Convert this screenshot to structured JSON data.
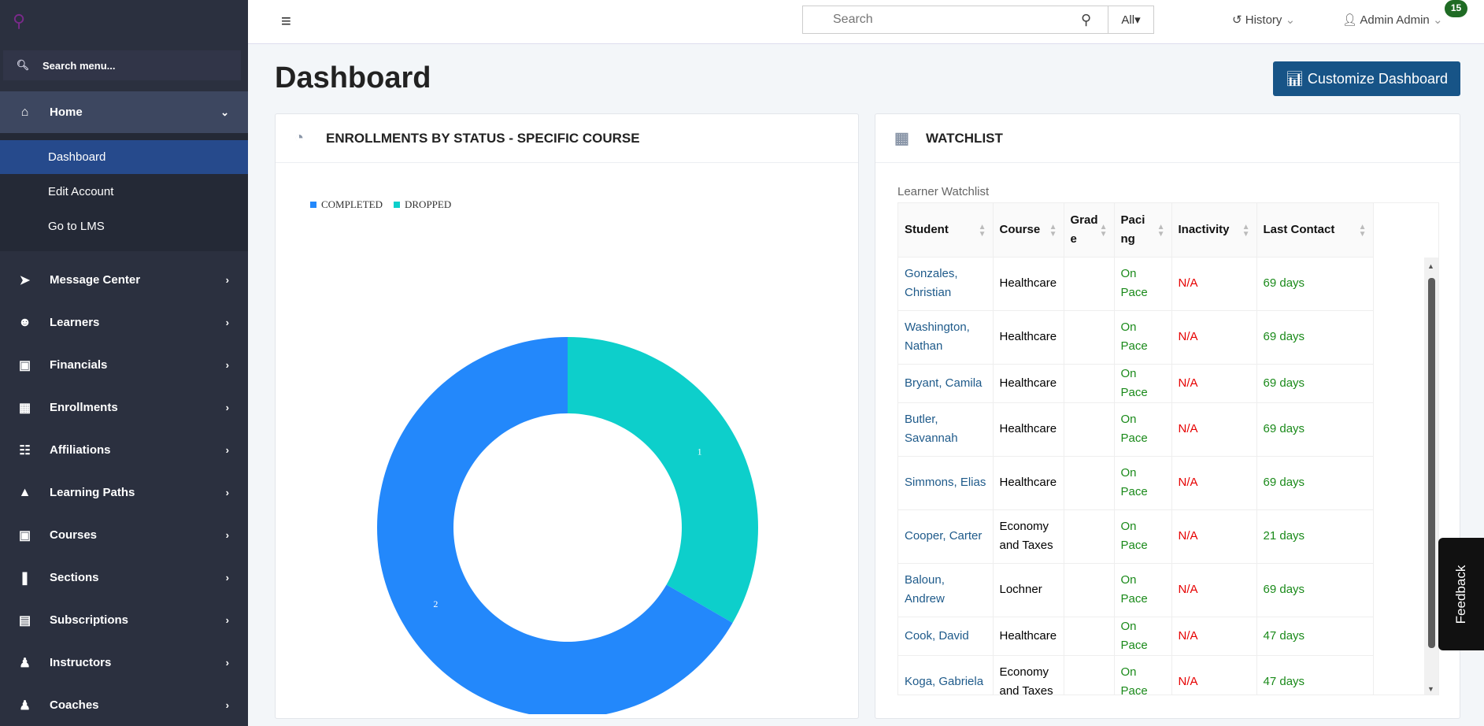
{
  "sidebar": {
    "search_placeholder": "Search menu...",
    "home": "Home",
    "sub": [
      "Dashboard",
      "Edit Account",
      "Go to LMS"
    ],
    "items": [
      {
        "label": "Message Center",
        "icon": "paper-plane-icon"
      },
      {
        "label": "Learners",
        "icon": "users-icon"
      },
      {
        "label": "Financials",
        "icon": "money-icon"
      },
      {
        "label": "Enrollments",
        "icon": "calendar-icon"
      },
      {
        "label": "Affiliations",
        "icon": "sitemap-icon"
      },
      {
        "label": "Learning Paths",
        "icon": "graduation-cap-icon"
      },
      {
        "label": "Courses",
        "icon": "book-icon"
      },
      {
        "label": "Sections",
        "icon": "books-icon"
      },
      {
        "label": "Subscriptions",
        "icon": "newspaper-icon"
      },
      {
        "label": "Instructors",
        "icon": "instructor-icon"
      },
      {
        "label": "Coaches",
        "icon": "coach-icon"
      }
    ]
  },
  "header": {
    "search_placeholder": "Search",
    "scope": "All",
    "history": "History",
    "user": "Admin Admin",
    "notifications": "15"
  },
  "page": {
    "title": "Dashboard",
    "customize": "Customize Dashboard"
  },
  "enrollments": {
    "title": "ENROLLMENTS BY STATUS - SPECIFIC COURSE"
  },
  "chart_data": {
    "type": "pie",
    "donut": true,
    "categories": [
      "COMPLETED",
      "DROPPED"
    ],
    "values": [
      2,
      1
    ],
    "colors": [
      "#2388fb",
      "#0dcfcb"
    ],
    "legend": "top-left"
  },
  "watchlist": {
    "title": "WATCHLIST",
    "subtitle": "Learner Watchlist",
    "columns": [
      "Student",
      "Course",
      "Grade",
      "Pacing",
      "Inactivity",
      "Last Contact"
    ],
    "rows": [
      [
        "Gonzales, Christian",
        "Healthcare",
        "",
        "On Pace",
        "N/A",
        "69 days"
      ],
      [
        "Washington, Nathan",
        "Healthcare",
        "",
        "On Pace",
        "N/A",
        "69 days"
      ],
      [
        "Bryant, Camila",
        "Healthcare",
        "",
        "On Pace",
        "N/A",
        "69 days"
      ],
      [
        "Butler, Savannah",
        "Healthcare",
        "",
        "On Pace",
        "N/A",
        "69 days"
      ],
      [
        "Simmons, Elias",
        "Healthcare",
        "",
        "On Pace",
        "N/A",
        "69 days"
      ],
      [
        "Cooper, Carter",
        "Economy and Taxes",
        "",
        "On Pace",
        "N/A",
        "21 days"
      ],
      [
        "Baloun, Andrew",
        "Lochner",
        "",
        "On Pace",
        "N/A",
        "69 days"
      ],
      [
        "Cook, David",
        "Healthcare",
        "",
        "On Pace",
        "N/A",
        "47 days"
      ],
      [
        "Koga, Gabriela",
        "Economy and Taxes",
        "",
        "On Pace",
        "N/A",
        "47 days"
      ]
    ]
  },
  "feedback": "Feedback"
}
